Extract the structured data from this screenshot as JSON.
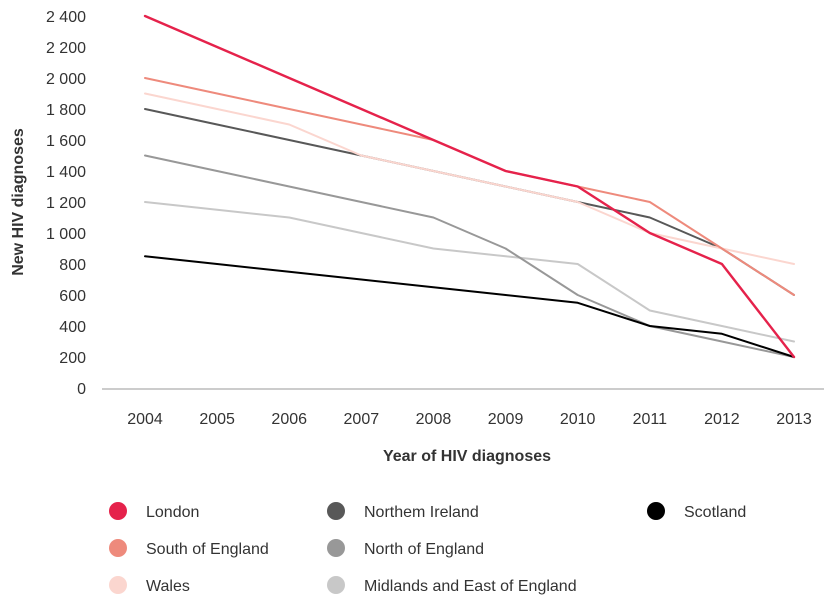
{
  "chart_data": {
    "type": "line",
    "xlabel": "Year of HIV diagnoses",
    "ylabel": "New HIV diagnoses",
    "x": [
      "2004",
      "2005",
      "2006",
      "2007",
      "2008",
      "2009",
      "2010",
      "2011",
      "2012",
      "2013"
    ],
    "ylim": [
      0,
      2400
    ],
    "yticks": [
      {
        "value": 0,
        "label": "0"
      },
      {
        "value": 200,
        "label": "200"
      },
      {
        "value": 400,
        "label": "400"
      },
      {
        "value": 600,
        "label": "600"
      },
      {
        "value": 800,
        "label": "800"
      },
      {
        "value": 1000,
        "label": "1 000"
      },
      {
        "value": 1200,
        "label": "1 200"
      },
      {
        "value": 1400,
        "label": "1 400"
      },
      {
        "value": 1600,
        "label": "1 600"
      },
      {
        "value": 1800,
        "label": "1 800"
      },
      {
        "value": 2000,
        "label": "2 000"
      },
      {
        "value": 2200,
        "label": "2 200"
      },
      {
        "value": 2400,
        "label": "2 400"
      }
    ],
    "grid": false,
    "legend_position": "bottom",
    "series": [
      {
        "name": "Midlands and East of England",
        "color": "#c8c8c8",
        "values": [
          1200,
          1150,
          1100,
          1000,
          900,
          850,
          800,
          500,
          400,
          300
        ]
      },
      {
        "name": "North of England",
        "color": "#989898",
        "values": [
          1500,
          1400,
          1300,
          1200,
          1100,
          900,
          600,
          400,
          300,
          200
        ]
      },
      {
        "name": "Northern Ireland",
        "legend_label": "Northem Ireland",
        "color": "#585858",
        "values": [
          1800,
          1700,
          1600,
          1500,
          1400,
          1300,
          1200,
          1100,
          900,
          600
        ]
      },
      {
        "name": "Wales",
        "color": "#fbd6cf",
        "values": [
          1900,
          1800,
          1700,
          1500,
          1400,
          1300,
          1200,
          1000,
          900,
          800
        ]
      },
      {
        "name": "South of England",
        "color": "#ee8a7c",
        "values": [
          2000,
          1900,
          1800,
          1700,
          1600,
          1400,
          1300,
          1200,
          900,
          600
        ]
      },
      {
        "name": "Scotland",
        "color": "#000000",
        "values": [
          850,
          800,
          750,
          700,
          650,
          600,
          550,
          400,
          350,
          200
        ]
      },
      {
        "name": "London",
        "color": "#e5224b",
        "values": [
          2400,
          2200,
          2000,
          1800,
          1600,
          1400,
          1300,
          1000,
          800,
          200
        ]
      }
    ],
    "legend": [
      {
        "label": "London",
        "color": "#e5224b"
      },
      {
        "label": "South of England",
        "color": "#ee8a7c"
      },
      {
        "label": "Wales",
        "color": "#fbd6cf"
      },
      {
        "label": "Northem Ireland",
        "color": "#585858"
      },
      {
        "label": "North of England",
        "color": "#989898"
      },
      {
        "label": "Midlands and East of England",
        "color": "#c8c8c8"
      },
      {
        "label": "Scotland",
        "color": "#000000"
      }
    ]
  }
}
